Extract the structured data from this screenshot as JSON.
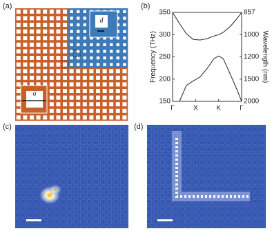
{
  "labels": {
    "a": "(a)",
    "b": "(b)",
    "c": "(c)",
    "d": "(d)"
  },
  "inset_labels": {
    "d": "d",
    "a": "a"
  },
  "chart_data": {
    "type": "line",
    "y_label": "Frequency (THz)",
    "y2_label": "Wavelength (nm)",
    "x": [
      0,
      0.3,
      0.6,
      0.9,
      1.2,
      1.5,
      1.8,
      2.0,
      2.2,
      2.5,
      2.8,
      3
    ],
    "xlim": [
      0,
      3
    ],
    "xticks": [
      {
        "value": 0,
        "label": "Γ"
      },
      {
        "value": 1,
        "label": "X"
      },
      {
        "value": 2,
        "label": "K"
      },
      {
        "value": 3,
        "label": "Γ"
      }
    ],
    "ylim": [
      150,
      350
    ],
    "yticks": [
      150,
      200,
      250,
      300,
      350
    ],
    "y2lim": [
      857,
      2000
    ],
    "y2ticks": [
      857,
      1000,
      1200,
      1500,
      2000
    ],
    "y2_scale": "inverse",
    "series": [
      {
        "color": "#222222",
        "values": [
          350,
          325,
          302,
          289,
          288,
          291,
          297,
          300,
          305,
          318,
          336,
          350
        ]
      },
      {
        "color": "#222222",
        "values": [
          null,
          150,
          186,
          196,
          205,
          224,
          246,
          252,
          246,
          212,
          176,
          150
        ]
      }
    ]
  }
}
